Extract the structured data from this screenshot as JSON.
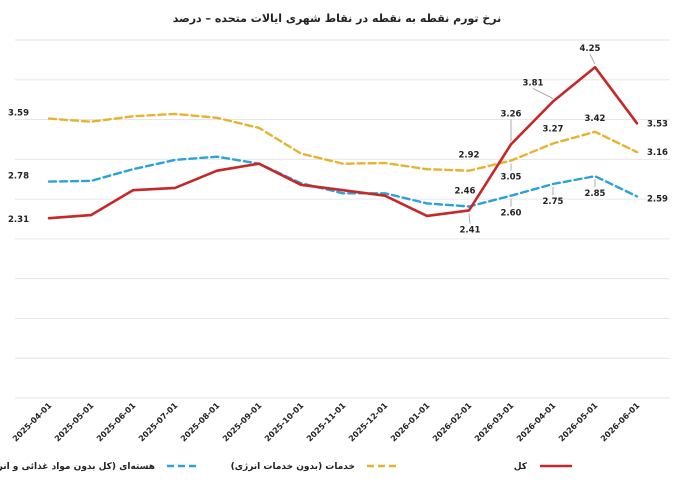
{
  "chart_data": {
    "type": "line",
    "title": "نرخ تورم نقطه به نقطه در نقاط شهری ایالات متحده – درصد",
    "x": [
      "2025-04-01",
      "2025-05-01",
      "2025-06-01",
      "2025-07-01",
      "2025-08-01",
      "2025-09-01",
      "2025-10-01",
      "2025-11-01",
      "2025-12-01",
      "2026-01-01",
      "2026-02-01",
      "2026-03-01",
      "2026-04-01",
      "2026-05-01",
      "2026-06-01"
    ],
    "ylim": [
      0,
      4.6
    ],
    "grid": true,
    "legend_position": "bottom",
    "series": [
      {
        "name": "کل",
        "color": "#c62828",
        "style": "solid",
        "values": [
          2.31,
          2.35,
          2.67,
          2.7,
          2.92,
          3.01,
          2.74,
          2.67,
          2.6,
          2.34,
          2.41,
          3.26,
          3.81,
          4.25,
          3.53
        ],
        "labels": {
          "0": "2.31",
          "10": "2.41",
          "11": "3.26",
          "12": "3.81",
          "13": "4.25",
          "14": "3.53"
        }
      },
      {
        "name": "خدمات (بدون خدمات انرژی)",
        "color": "#e6b32e",
        "style": "dashed",
        "values": [
          3.59,
          3.55,
          3.62,
          3.65,
          3.6,
          3.47,
          3.14,
          3.01,
          3.02,
          2.94,
          2.92,
          3.05,
          3.27,
          3.42,
          3.16
        ],
        "labels": {
          "0": "3.59",
          "10": "2.92",
          "11": "3.05",
          "12": "3.27",
          "13": "3.42",
          "14": "3.16"
        }
      },
      {
        "name": "هسته‌ای (کل بدون مواد غذائی و انرژی)",
        "color": "#2aa3d8",
        "style": "dashed",
        "values": [
          2.78,
          2.79,
          2.94,
          3.06,
          3.1,
          3.01,
          2.76,
          2.63,
          2.63,
          2.5,
          2.46,
          2.6,
          2.75,
          2.85,
          2.59
        ],
        "labels": {
          "0": "2.78",
          "10": "2.46",
          "11": "2.60",
          "12": "2.75",
          "13": "2.85",
          "14": "2.59"
        }
      }
    ]
  }
}
